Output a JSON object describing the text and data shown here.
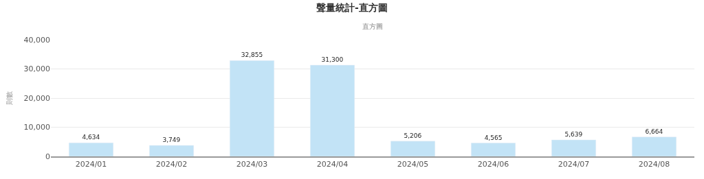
{
  "chart_data": {
    "type": "bar",
    "title": "聲量統計-直方圖",
    "subtitle": "直方圖",
    "ylabel": "則數",
    "categories": [
      "2024/01",
      "2024/02",
      "2024/03",
      "2024/04",
      "2024/05",
      "2024/06",
      "2024/07",
      "2024/08"
    ],
    "values": [
      4634,
      3749,
      32855,
      31300,
      5206,
      4565,
      5639,
      6664
    ],
    "color": "#c2e3f6",
    "ylim": [
      0,
      40000
    ],
    "yticks": [
      {
        "value": 0,
        "label": "0"
      },
      {
        "value": 10000,
        "label": "10,000"
      },
      {
        "value": 20000,
        "label": "20,000"
      },
      {
        "value": 30000,
        "label": "30,000"
      },
      {
        "value": 40000,
        "label": "40,000"
      }
    ],
    "value_labels": [
      "4,634",
      "3,749",
      "32,855",
      "31,300",
      "5,206",
      "4,565",
      "5,639",
      "6,664"
    ],
    "grid": "y",
    "legend": false
  }
}
